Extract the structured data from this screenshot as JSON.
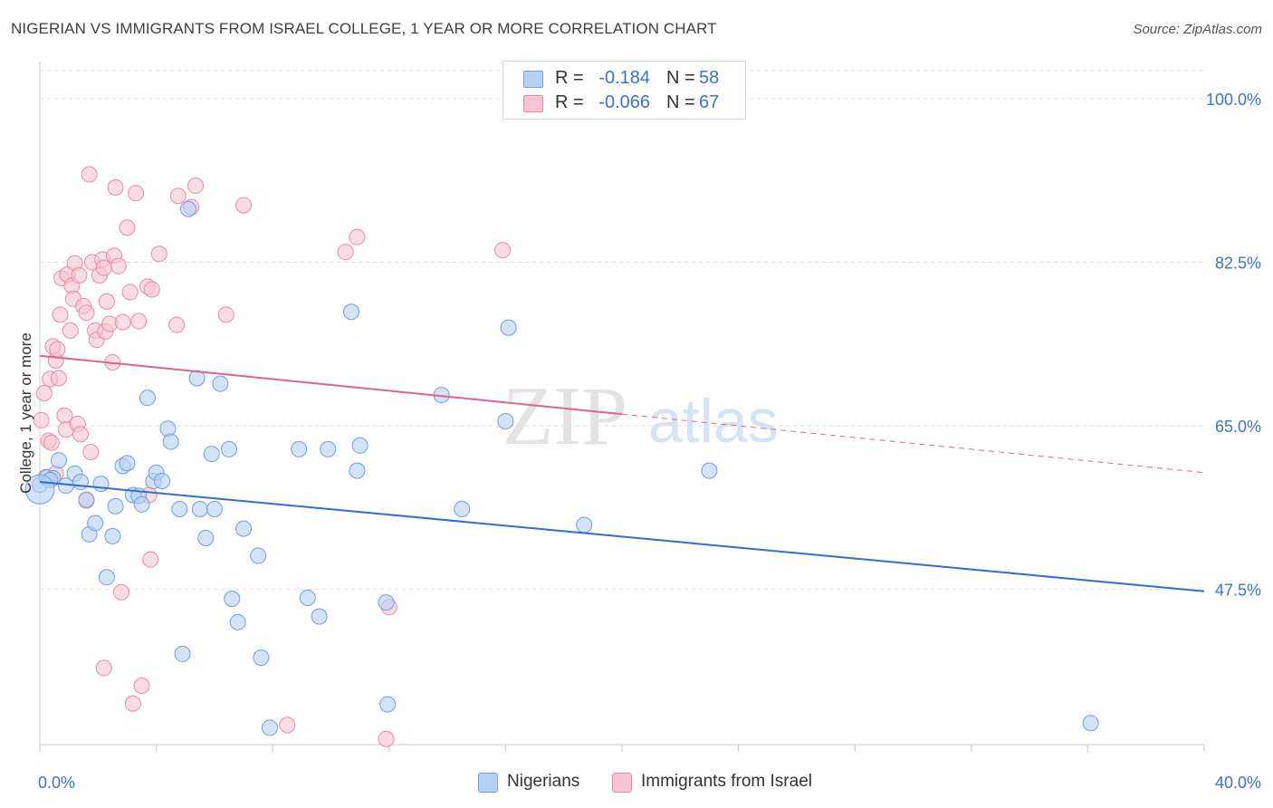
{
  "title": "NIGERIAN VS IMMIGRANTS FROM ISRAEL COLLEGE, 1 YEAR OR MORE CORRELATION CHART",
  "source": "Source: ZipAtlas.com",
  "watermark": {
    "zip": "ZIP",
    "atlas": "atlas"
  },
  "legend": {
    "r_label": "R =",
    "n_label": "N =",
    "series": [
      {
        "name": "Nigerians",
        "r": "-0.184",
        "n": "58"
      },
      {
        "name": "Immigrants from Israel",
        "r": "-0.066",
        "n": "67"
      }
    ]
  },
  "colors": {
    "nigerians_fill": "#b7d0f3",
    "nigerians_stroke": "#6f9fe0",
    "nigerians_line": "#2e6fd1",
    "israel_fill": "#f7c4d4",
    "israel_stroke": "#e98aa8",
    "israel_line": "#e0628e",
    "grid": "#dcdcdc",
    "tick_text": "#3874cf"
  },
  "chart_data": {
    "type": "scatter",
    "title": "NIGERIAN VS IMMIGRANTS FROM ISRAEL COLLEGE, 1 YEAR OR MORE CORRELATION CHART",
    "xlabel": "",
    "ylabel": "College, 1 year or more",
    "xlim": [
      0,
      40
    ],
    "ylim": [
      30.9,
      103.0
    ],
    "x_tick_labels": [
      {
        "value": 0,
        "label": "0.0%"
      },
      {
        "value": 40,
        "label": "40.0%"
      }
    ],
    "y_ticks": [
      {
        "value": 47.5,
        "label": "47.5%"
      },
      {
        "value": 65.0,
        "label": "65.0%"
      },
      {
        "value": 82.5,
        "label": "82.5%"
      },
      {
        "value": 100.0,
        "label": "100.0%"
      }
    ],
    "series": [
      {
        "name": "Nigerians",
        "trend": {
          "x0": 0,
          "y0": 59.0,
          "x1": 40,
          "y1": 47.3,
          "solid_to": 40
        },
        "points": [
          [
            0.0,
            58.7
          ],
          [
            0.25,
            59.5
          ],
          [
            0.45,
            59.4
          ],
          [
            0.65,
            61.3
          ],
          [
            0.9,
            58.6
          ],
          [
            1.2,
            59.9
          ],
          [
            1.4,
            59.0
          ],
          [
            1.6,
            57.1
          ],
          [
            1.7,
            53.4
          ],
          [
            1.9,
            54.6
          ],
          [
            2.1,
            58.8
          ],
          [
            2.3,
            48.8
          ],
          [
            2.5,
            53.2
          ],
          [
            2.6,
            56.4
          ],
          [
            2.85,
            60.7
          ],
          [
            3.0,
            61.0
          ],
          [
            3.2,
            57.6
          ],
          [
            3.4,
            57.5
          ],
          [
            3.5,
            56.6
          ],
          [
            3.7,
            68.0
          ],
          [
            3.9,
            59.1
          ],
          [
            4.0,
            60.0
          ],
          [
            4.2,
            59.1
          ],
          [
            4.4,
            64.7
          ],
          [
            4.5,
            63.3
          ],
          [
            4.8,
            56.1
          ],
          [
            5.1,
            88.2
          ],
          [
            5.4,
            70.1
          ],
          [
            5.5,
            56.1
          ],
          [
            5.7,
            53.0
          ],
          [
            5.9,
            62.0
          ],
          [
            6.0,
            56.1
          ],
          [
            6.2,
            69.5
          ],
          [
            6.5,
            62.5
          ],
          [
            6.6,
            46.5
          ],
          [
            6.8,
            44.0
          ],
          [
            7.0,
            54.0
          ],
          [
            7.5,
            51.1
          ],
          [
            7.6,
            40.2
          ],
          [
            7.9,
            32.7
          ],
          [
            8.9,
            62.5
          ],
          [
            9.2,
            46.6
          ],
          [
            9.6,
            44.6
          ],
          [
            9.9,
            62.5
          ],
          [
            10.7,
            77.2
          ],
          [
            10.9,
            60.2
          ],
          [
            11.0,
            62.9
          ],
          [
            11.9,
            46.1
          ],
          [
            11.95,
            35.2
          ],
          [
            13.8,
            68.3
          ],
          [
            14.5,
            56.1
          ],
          [
            16.0,
            65.5
          ],
          [
            16.1,
            75.5
          ],
          [
            18.7,
            54.4
          ],
          [
            23.0,
            60.2
          ],
          [
            4.9,
            40.6
          ],
          [
            0.35,
            59.2
          ],
          [
            36.1,
            33.2
          ]
        ]
      },
      {
        "name": "Immigrants from Israel",
        "trend": {
          "x0": 0,
          "y0": 72.5,
          "x1": 40,
          "y1": 60.0,
          "solid_to": 20
        },
        "points": [
          [
            0.05,
            65.6
          ],
          [
            0.15,
            68.5
          ],
          [
            0.2,
            59.5
          ],
          [
            0.3,
            63.4
          ],
          [
            0.35,
            70.0
          ],
          [
            0.45,
            73.5
          ],
          [
            0.55,
            72.0
          ],
          [
            0.6,
            73.2
          ],
          [
            0.65,
            70.1
          ],
          [
            0.7,
            76.9
          ],
          [
            0.75,
            80.8
          ],
          [
            0.85,
            66.1
          ],
          [
            0.9,
            64.6
          ],
          [
            0.95,
            81.2
          ],
          [
            1.05,
            75.2
          ],
          [
            1.1,
            80.0
          ],
          [
            1.15,
            78.6
          ],
          [
            1.2,
            82.4
          ],
          [
            1.3,
            65.2
          ],
          [
            1.35,
            81.1
          ],
          [
            1.4,
            64.1
          ],
          [
            1.5,
            77.8
          ],
          [
            1.6,
            77.1
          ],
          [
            1.7,
            91.9
          ],
          [
            1.75,
            62.2
          ],
          [
            1.8,
            82.5
          ],
          [
            1.9,
            75.2
          ],
          [
            1.95,
            74.2
          ],
          [
            2.05,
            81.1
          ],
          [
            2.15,
            82.8
          ],
          [
            2.2,
            39.1
          ],
          [
            2.25,
            75.1
          ],
          [
            2.3,
            78.3
          ],
          [
            2.4,
            75.9
          ],
          [
            2.5,
            71.8
          ],
          [
            2.55,
            83.2
          ],
          [
            2.6,
            90.5
          ],
          [
            2.7,
            82.1
          ],
          [
            2.8,
            47.2
          ],
          [
            2.85,
            76.1
          ],
          [
            3.0,
            86.2
          ],
          [
            3.1,
            79.3
          ],
          [
            3.2,
            35.3
          ],
          [
            3.3,
            89.9
          ],
          [
            3.4,
            76.2
          ],
          [
            3.5,
            37.2
          ],
          [
            3.7,
            79.9
          ],
          [
            3.75,
            57.6
          ],
          [
            3.8,
            50.7
          ],
          [
            3.85,
            79.6
          ],
          [
            4.1,
            83.4
          ],
          [
            4.7,
            75.8
          ],
          [
            4.75,
            89.6
          ],
          [
            5.2,
            88.4
          ],
          [
            5.35,
            90.7
          ],
          [
            6.4,
            76.9
          ],
          [
            7.0,
            88.6
          ],
          [
            8.5,
            33.0
          ],
          [
            10.5,
            83.6
          ],
          [
            10.9,
            85.2
          ],
          [
            11.9,
            31.5
          ],
          [
            12.0,
            45.6
          ],
          [
            15.9,
            83.8
          ],
          [
            1.6,
            57.0
          ],
          [
            0.55,
            59.9
          ],
          [
            0.4,
            63.2
          ],
          [
            2.2,
            81.9
          ]
        ]
      }
    ]
  }
}
